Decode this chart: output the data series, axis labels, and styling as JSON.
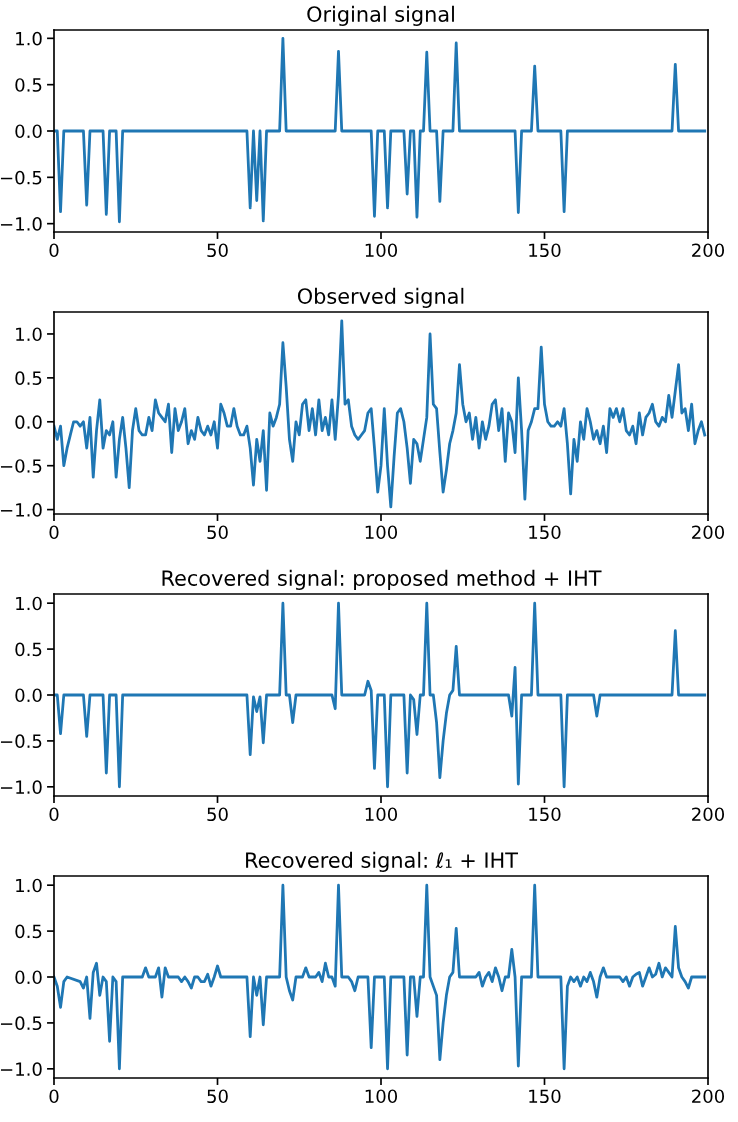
{
  "chart_data": [
    {
      "type": "line",
      "title": "Original signal",
      "xlim": [
        0,
        200
      ],
      "xticks": [
        0,
        50,
        100,
        150,
        200
      ],
      "ylim": [
        -1.09,
        1.09
      ],
      "yticks": [
        {
          "value": -1,
          "label": "−1.0"
        },
        {
          "value": -0.5,
          "label": "−0.5"
        },
        {
          "value": 0,
          "label": "0.0"
        },
        {
          "value": 0.5,
          "label": "0.5"
        },
        {
          "value": 1,
          "label": "1.0"
        }
      ],
      "grid": false,
      "series": [
        {
          "color": "#1f77b4",
          "x": [
            0,
            1,
            2,
            3,
            9,
            10,
            11,
            15,
            16,
            17,
            19,
            20,
            21,
            59,
            60,
            61,
            62,
            63,
            64,
            65,
            69,
            70,
            71,
            86,
            87,
            88,
            97,
            98,
            99,
            101,
            102,
            103,
            107,
            108,
            109,
            110,
            111,
            112,
            113,
            114,
            115,
            117,
            118,
            119,
            122,
            123,
            124,
            141,
            142,
            143,
            146,
            147,
            148,
            155,
            156,
            157,
            189,
            190,
            191,
            199
          ],
          "values": [
            0,
            0,
            -0.87,
            0,
            0,
            -0.8,
            0,
            0,
            -0.9,
            0,
            0,
            -0.98,
            0,
            0,
            -0.83,
            0,
            -0.75,
            0,
            -0.97,
            0,
            0,
            1.0,
            0,
            0,
            0.86,
            0,
            0,
            -0.92,
            0,
            0,
            -0.83,
            0,
            0,
            -0.68,
            0,
            0,
            -0.93,
            0,
            0,
            0.85,
            0,
            0,
            -0.76,
            0,
            0,
            0.95,
            0,
            0,
            -0.88,
            0,
            0,
            0.7,
            0,
            0,
            -0.87,
            0,
            0,
            0.72,
            0,
            0
          ]
        }
      ]
    },
    {
      "type": "line",
      "title": "Observed signal",
      "xlim": [
        0,
        200
      ],
      "xticks": [
        0,
        50,
        100,
        150,
        200
      ],
      "ylim": [
        -1.05,
        1.25
      ],
      "yticks": [
        {
          "value": -1,
          "label": "−1.0"
        },
        {
          "value": -0.5,
          "label": "−0.5"
        },
        {
          "value": 0,
          "label": "0.0"
        },
        {
          "value": 0.5,
          "label": "0.5"
        },
        {
          "value": 1,
          "label": "1.0"
        }
      ],
      "grid": false,
      "series": [
        {
          "color": "#1f77b4",
          "values": [
            -0.05,
            -0.2,
            -0.05,
            -0.5,
            -0.3,
            -0.15,
            0.0,
            0.0,
            -0.05,
            0.0,
            -0.3,
            0.05,
            -0.63,
            -0.1,
            0.25,
            -0.3,
            -0.1,
            -0.15,
            0.0,
            -0.63,
            -0.2,
            0.05,
            -0.3,
            -0.75,
            -0.1,
            0.15,
            -0.1,
            -0.15,
            -0.15,
            0.05,
            -0.1,
            0.25,
            0.1,
            0.05,
            0.0,
            0.2,
            -0.35,
            0.15,
            -0.1,
            0.0,
            0.15,
            -0.25,
            -0.1,
            -0.2,
            0.05,
            -0.1,
            -0.15,
            -0.05,
            -0.15,
            0.0,
            -0.3,
            0.2,
            0.1,
            -0.05,
            -0.05,
            0.15,
            -0.05,
            -0.15,
            -0.15,
            -0.05,
            -0.3,
            -0.72,
            -0.2,
            -0.45,
            -0.1,
            -0.78,
            0.1,
            -0.05,
            0.05,
            0.2,
            0.9,
            0.4,
            -0.2,
            -0.45,
            0.0,
            -0.15,
            0.2,
            0.25,
            -0.1,
            0.15,
            -0.15,
            0.25,
            -0.1,
            0.05,
            -0.15,
            0.25,
            -0.2,
            0.3,
            1.15,
            0.2,
            0.25,
            -0.05,
            -0.15,
            -0.2,
            -0.15,
            -0.1,
            0.1,
            0.15,
            -0.3,
            -0.8,
            -0.5,
            0.15,
            -0.5,
            -0.97,
            -0.4,
            0.1,
            0.15,
            0.0,
            -0.3,
            -0.7,
            -0.2,
            -0.25,
            -0.45,
            -0.2,
            0.05,
            1.0,
            0.2,
            0.15,
            -0.35,
            -0.8,
            -0.55,
            -0.25,
            -0.1,
            0.1,
            0.65,
            0.2,
            0.0,
            0.1,
            -0.2,
            0.05,
            -0.3,
            0.0,
            -0.2,
            -0.05,
            0.2,
            0.25,
            -0.1,
            0.15,
            -0.45,
            0.1,
            0.0,
            -0.35,
            0.5,
            -0.1,
            -0.88,
            -0.1,
            0.0,
            0.15,
            0.15,
            0.85,
            0.2,
            0.0,
            -0.05,
            -0.05,
            0.0,
            -0.05,
            0.15,
            -0.25,
            -0.82,
            -0.2,
            -0.45,
            0.0,
            -0.2,
            0.15,
            0.0,
            -0.2,
            -0.1,
            -0.25,
            -0.05,
            -0.35,
            0.15,
            0.05,
            0.15,
            0.0,
            0.15,
            -0.1,
            -0.15,
            -0.05,
            -0.25,
            0.1,
            -0.15,
            0.05,
            0.1,
            0.2,
            0.0,
            -0.05,
            0.05,
            0.0,
            0.3,
            0.05,
            0.35,
            0.65,
            0.1,
            0.15,
            -0.1,
            0.2,
            -0.25,
            -0.1,
            0.0,
            -0.15
          ],
          "x": [
            0,
            1,
            2,
            3,
            4,
            5,
            6,
            7,
            8,
            9,
            10,
            11,
            12,
            13,
            14,
            15,
            16,
            17,
            18,
            19,
            20,
            21,
            22,
            23,
            24,
            25,
            26,
            27,
            28,
            29,
            30,
            31,
            32,
            33,
            34,
            35,
            36,
            37,
            38,
            39,
            40,
            41,
            42,
            43,
            44,
            45,
            46,
            47,
            48,
            49,
            50,
            51,
            52,
            53,
            54,
            55,
            56,
            57,
            58,
            59,
            60,
            61,
            62,
            63,
            64,
            65,
            66,
            67,
            68,
            69,
            70,
            71,
            72,
            73,
            74,
            75,
            76,
            77,
            78,
            79,
            80,
            81,
            82,
            83,
            84,
            85,
            86,
            87,
            88,
            89,
            90,
            91,
            92,
            93,
            94,
            95,
            96,
            97,
            98,
            99,
            100,
            101,
            102,
            103,
            104,
            105,
            106,
            107,
            108,
            109,
            110,
            111,
            112,
            113,
            114,
            115,
            116,
            117,
            118,
            119,
            120,
            121,
            122,
            123,
            124,
            125,
            126,
            127,
            128,
            129,
            130,
            131,
            132,
            133,
            134,
            135,
            136,
            137,
            138,
            139,
            140,
            141,
            142,
            143,
            144,
            145,
            146,
            147,
            148,
            149,
            150,
            151,
            152,
            153,
            154,
            155,
            156,
            157,
            158,
            159,
            160,
            161,
            162,
            163,
            164,
            165,
            166,
            167,
            168,
            169,
            170,
            171,
            172,
            173,
            174,
            175,
            176,
            177,
            178,
            179,
            180,
            181,
            182,
            183,
            184,
            185,
            186,
            187,
            188,
            189,
            190,
            191,
            192,
            193,
            194,
            195,
            196,
            197,
            198,
            199
          ]
        }
      ]
    },
    {
      "type": "line",
      "title": "Recovered signal: proposed method + IHT",
      "xlim": [
        0,
        200
      ],
      "xticks": [
        0,
        50,
        100,
        150,
        200
      ],
      "ylim": [
        -1.1,
        1.1
      ],
      "yticks": [
        {
          "value": -1,
          "label": "−1.0"
        },
        {
          "value": -0.5,
          "label": "−0.5"
        },
        {
          "value": 0,
          "label": "0.0"
        },
        {
          "value": 0.5,
          "label": "0.5"
        },
        {
          "value": 1,
          "label": "1.0"
        }
      ],
      "grid": false,
      "series": [
        {
          "color": "#1f77b4",
          "x": [
            0,
            1,
            2,
            3,
            9,
            10,
            11,
            15,
            16,
            17,
            19,
            20,
            21,
            59,
            60,
            61,
            62,
            63,
            64,
            65,
            69,
            70,
            71,
            72,
            73,
            74,
            85,
            86,
            87,
            88,
            95,
            96,
            97,
            98,
            99,
            101,
            102,
            103,
            107,
            108,
            109,
            110,
            111,
            112,
            113,
            114,
            115,
            116,
            117,
            118,
            119,
            120,
            121,
            122,
            123,
            124,
            139,
            140,
            141,
            142,
            143,
            146,
            147,
            148,
            155,
            156,
            157,
            165,
            166,
            167,
            189,
            190,
            191,
            199
          ],
          "values": [
            0,
            0,
            -0.42,
            0,
            0,
            -0.45,
            0,
            0,
            -0.85,
            0,
            0,
            -1.0,
            0,
            0,
            -0.65,
            -0.02,
            -0.18,
            -0.02,
            -0.52,
            0,
            0,
            1.0,
            0,
            0,
            -0.3,
            0,
            0,
            -0.15,
            1.0,
            0,
            0,
            0.15,
            0.05,
            -0.8,
            0,
            0,
            -1.0,
            0,
            0,
            -0.85,
            0,
            -0.05,
            -0.43,
            0,
            0,
            1.0,
            0,
            0,
            -0.3,
            -0.9,
            -0.5,
            -0.2,
            0,
            0.05,
            0.53,
            0,
            0,
            -0.23,
            0.3,
            -0.97,
            0,
            0,
            1.0,
            0,
            0,
            -1.0,
            0,
            0,
            -0.23,
            0,
            0,
            0.7,
            0,
            0
          ]
        }
      ]
    },
    {
      "type": "line",
      "title": "Recovered signal: ℓ₁ + IHT",
      "xlim": [
        0,
        200
      ],
      "xticks": [
        0,
        50,
        100,
        150,
        200
      ],
      "ylim": [
        -1.1,
        1.1
      ],
      "yticks": [
        {
          "value": -1,
          "label": "−1.0"
        },
        {
          "value": -0.5,
          "label": "−0.5"
        },
        {
          "value": 0,
          "label": "0.0"
        },
        {
          "value": 0.5,
          "label": "0.5"
        },
        {
          "value": 1,
          "label": "1.0"
        }
      ],
      "grid": false,
      "series": [
        {
          "color": "#1f77b4",
          "x": [
            0,
            1,
            2,
            3,
            4,
            8,
            9,
            10,
            11,
            12,
            13,
            14,
            15,
            16,
            17,
            18,
            19,
            20,
            21,
            27,
            28,
            29,
            31,
            32,
            33,
            34,
            35,
            38,
            39,
            40,
            41,
            42,
            43,
            44,
            45,
            46,
            47,
            48,
            49,
            50,
            51,
            59,
            60,
            61,
            62,
            63,
            64,
            65,
            69,
            70,
            71,
            72,
            73,
            74,
            76,
            77,
            78,
            80,
            81,
            82,
            83,
            84,
            85,
            86,
            87,
            88,
            90,
            91,
            92,
            93,
            96,
            97,
            98,
            99,
            101,
            102,
            103,
            107,
            108,
            109,
            110,
            111,
            112,
            113,
            114,
            115,
            117,
            118,
            119,
            120,
            121,
            122,
            123,
            124,
            129,
            130,
            131,
            132,
            133,
            134,
            135,
            136,
            137,
            138,
            139,
            140,
            141,
            142,
            143,
            146,
            147,
            148,
            155,
            156,
            157,
            158,
            159,
            160,
            161,
            162,
            163,
            164,
            165,
            166,
            167,
            168,
            169,
            173,
            174,
            175,
            176,
            177,
            178,
            179,
            180,
            181,
            182,
            183,
            184,
            185,
            186,
            187,
            188,
            189,
            190,
            191,
            192,
            193,
            194,
            195,
            199
          ],
          "values": [
            0,
            -0.1,
            -0.33,
            -0.05,
            0,
            -0.05,
            -0.12,
            0,
            -0.45,
            0.05,
            0.15,
            -0.2,
            0,
            -0.05,
            -0.7,
            0,
            -0.05,
            -1.0,
            0,
            0,
            0.1,
            0,
            0,
            0.1,
            -0.22,
            0.1,
            0,
            0,
            -0.05,
            0,
            -0.05,
            -0.12,
            0,
            0,
            -0.05,
            -0.05,
            0.03,
            -0.1,
            0,
            0.12,
            0,
            0,
            -0.65,
            0,
            -0.2,
            0,
            -0.52,
            0,
            0,
            1.0,
            0,
            -0.15,
            -0.25,
            0,
            0,
            0.1,
            0,
            0,
            0.05,
            -0.05,
            0.15,
            0,
            0,
            -0.1,
            1.0,
            0,
            0,
            -0.05,
            -0.15,
            0,
            0,
            -0.77,
            0,
            0,
            0,
            -1.0,
            0,
            0,
            -0.85,
            0,
            0,
            -0.43,
            0,
            0,
            1.0,
            0,
            -0.2,
            -0.9,
            -0.5,
            -0.2,
            0,
            0.05,
            0.53,
            0,
            0,
            0.05,
            -0.1,
            0,
            0.05,
            -0.05,
            0.1,
            0,
            -0.15,
            0,
            0,
            0.3,
            0,
            -0.97,
            0,
            0,
            1.0,
            0,
            0,
            -1.0,
            -0.1,
            0,
            -0.05,
            0,
            -0.1,
            0,
            -0.05,
            0.05,
            -0.05,
            -0.22,
            0,
            0.1,
            0,
            0,
            -0.05,
            0,
            -0.1,
            0,
            0.03,
            0.05,
            -0.1,
            0,
            0.1,
            0,
            0.03,
            0.15,
            0,
            0.1,
            0.05,
            0,
            0.55,
            0.1,
            0,
            -0.05,
            -0.12,
            0,
            0
          ]
        }
      ]
    }
  ]
}
